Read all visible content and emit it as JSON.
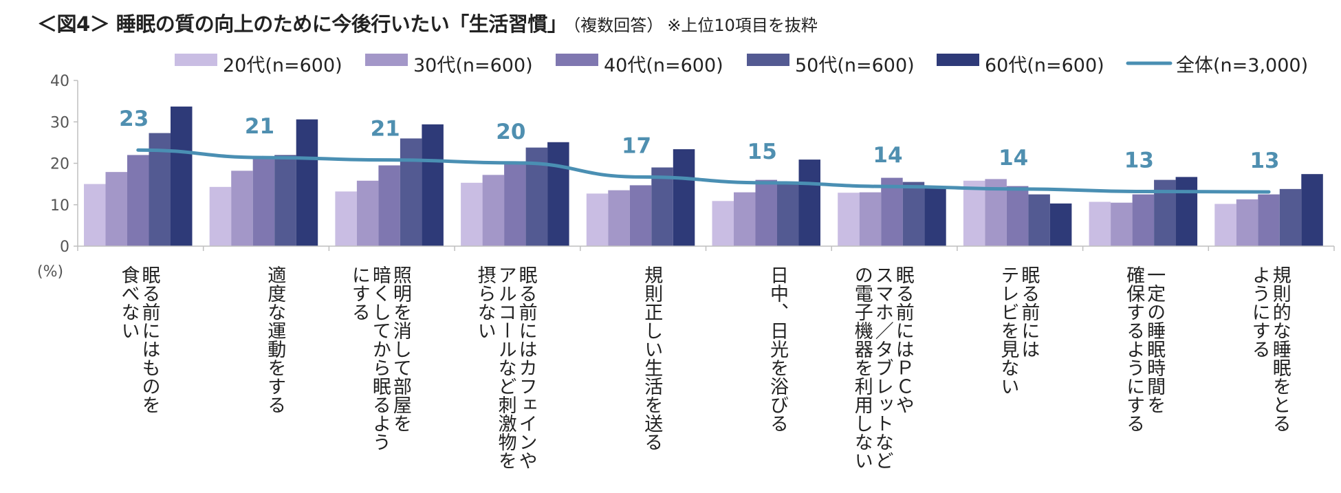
{
  "title": {
    "main": "＜図4＞ 睡眠の質の向上のために今後行いたい「生活習慣」",
    "note": "（複数回答）",
    "note2": "※上位10項目を抜粋"
  },
  "chart_data": {
    "type": "bar",
    "ylim": [
      0,
      40
    ],
    "yticks": [
      0,
      10,
      20,
      30,
      40
    ],
    "yunit": "(%)",
    "grid": false,
    "legend_position": "top",
    "categories": [
      [
        "眠る前にはものを",
        "食べない"
      ],
      [
        "適度な運動をする"
      ],
      [
        "照明を消して部屋を",
        "暗くしてから眠るよう",
        "にする"
      ],
      [
        "眠る前にはカフェインや",
        "アルコールなど刺激物を",
        "摂らない"
      ],
      [
        "規則正しい生活を送る"
      ],
      [
        "日中、日光を浴びる"
      ],
      [
        "眠る前にはＰＣや",
        "スマホ／タブレットなど",
        "の電子機器を利用しない"
      ],
      [
        "眠る前には",
        "テレビを見ない"
      ],
      [
        "一定の睡眠時間を",
        "確保するようにする"
      ],
      [
        "規則的な睡眠をとる",
        "ようにする"
      ]
    ],
    "series": [
      {
        "name": "20代(n=600)",
        "color": "#c9bde3",
        "values": [
          15,
          14.3,
          13.2,
          15.3,
          12.7,
          10.9,
          12.9,
          15.8,
          10.7,
          10.2
        ]
      },
      {
        "name": "30代(n=600)",
        "color": "#a397c8",
        "values": [
          17.9,
          18.2,
          15.8,
          17.2,
          13.5,
          13,
          13,
          16.2,
          10.5,
          11.3
        ]
      },
      {
        "name": "40代(n=600)",
        "color": "#7f77b0",
        "values": [
          22,
          21.5,
          19.5,
          20.5,
          14.7,
          16,
          16.5,
          14.5,
          12.5,
          12.5
        ]
      },
      {
        "name": "50代(n=600)",
        "color": "#535a92",
        "values": [
          27.3,
          22,
          26,
          23.8,
          19,
          15.5,
          15.5,
          12.5,
          16,
          13.8
        ]
      },
      {
        "name": "60代(n=600)",
        "color": "#2e3a78",
        "values": [
          33.7,
          30.6,
          29.4,
          25.1,
          23.4,
          20.9,
          14,
          10.3,
          16.7,
          17.4
        ]
      }
    ],
    "line": {
      "name": "全体(n=3,000)",
      "color": "#4a8fb3",
      "values": [
        23.2,
        21.4,
        20.8,
        20.1,
        16.7,
        15.3,
        14.4,
        13.8,
        13.2,
        13.1
      ]
    },
    "data_labels": [
      "23",
      "21",
      "21",
      "20",
      "17",
      "15",
      "14",
      "14",
      "13",
      "13"
    ]
  }
}
